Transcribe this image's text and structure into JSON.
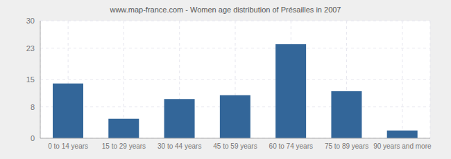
{
  "chart_data": {
    "type": "bar",
    "title": "www.map-france.com - Women age distribution of Présailles in 2007",
    "categories": [
      "0 to 14 years",
      "15 to 29 years",
      "30 to 44 years",
      "45 to 59 years",
      "60 to 74 years",
      "75 to 89 years",
      "90 years and more"
    ],
    "values": [
      14,
      5,
      10,
      11,
      24,
      12,
      2
    ],
    "color": "#336699",
    "ylim": [
      0,
      30
    ],
    "yticks": [
      0,
      8,
      15,
      23,
      30
    ],
    "grid": true
  }
}
